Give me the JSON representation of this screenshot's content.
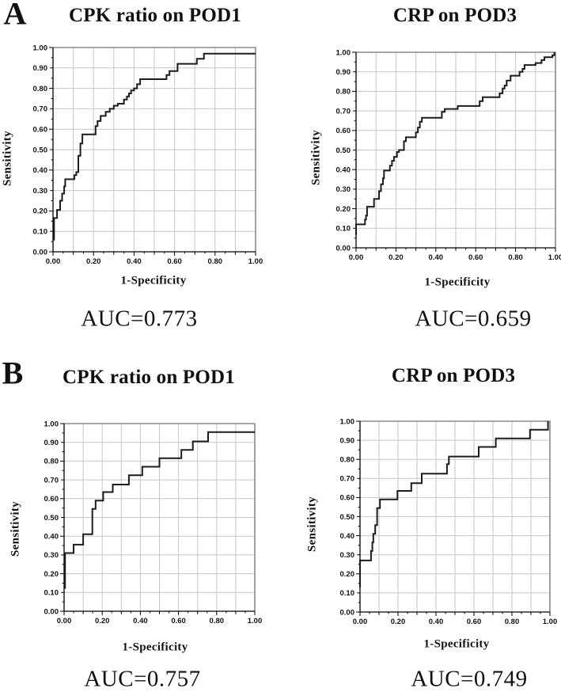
{
  "figure": {
    "panel_letters": [
      {
        "label": "A"
      },
      {
        "label": "B"
      }
    ],
    "axes": {
      "xlabel": "1-Specificity",
      "ylabel": "Sensitivity",
      "x_tick_labels": [
        "0.00",
        "0.20",
        "0.40",
        "0.60",
        "0.80",
        "1.00"
      ],
      "x_tick_values": [
        0,
        0.2,
        0.4,
        0.6,
        0.8,
        1
      ],
      "y_tick_labels": [
        "0.00",
        "0.10",
        "0.20",
        "0.30",
        "0.40",
        "0.50",
        "0.60",
        "0.70",
        "0.80",
        "0.90",
        "1.00"
      ],
      "y_tick_values": [
        0,
        0.1,
        0.2,
        0.3,
        0.4,
        0.5,
        0.6,
        0.7,
        0.8,
        0.9,
        1
      ],
      "x_range": [
        0,
        1
      ],
      "y_range": [
        0,
        1
      ],
      "grid": "on",
      "grid_step": 0.1,
      "minor_tick_step": 0.05
    },
    "colors": {
      "curve": "#1c1c1c",
      "grid": "#c6c6c6",
      "frame": "#8a8a8a",
      "axis": "#000000",
      "text": "#111111"
    }
  },
  "chart_data": [
    {
      "type": "line",
      "subtype": "roc-step-curve",
      "panel": "A",
      "title": "CPK ratio on POD1",
      "auc": 0.773,
      "auc_text": "AUC=0.773",
      "xlabel": "1-Specificity",
      "ylabel": "Sensitivity",
      "xlim": [
        0,
        1
      ],
      "ylim": [
        0,
        1
      ],
      "points": [
        [
          0.005,
          0.055
        ],
        [
          0.005,
          0.165
        ],
        [
          0.02,
          0.165
        ],
        [
          0.02,
          0.205
        ],
        [
          0.035,
          0.205
        ],
        [
          0.035,
          0.25
        ],
        [
          0.045,
          0.25
        ],
        [
          0.045,
          0.285
        ],
        [
          0.055,
          0.285
        ],
        [
          0.055,
          0.32
        ],
        [
          0.06,
          0.32
        ],
        [
          0.06,
          0.355
        ],
        [
          0.105,
          0.355
        ],
        [
          0.105,
          0.375
        ],
        [
          0.115,
          0.375
        ],
        [
          0.115,
          0.39
        ],
        [
          0.125,
          0.39
        ],
        [
          0.125,
          0.47
        ],
        [
          0.135,
          0.47
        ],
        [
          0.135,
          0.53
        ],
        [
          0.145,
          0.53
        ],
        [
          0.145,
          0.575
        ],
        [
          0.21,
          0.575
        ],
        [
          0.21,
          0.615
        ],
        [
          0.22,
          0.615
        ],
        [
          0.22,
          0.64
        ],
        [
          0.235,
          0.64
        ],
        [
          0.235,
          0.665
        ],
        [
          0.26,
          0.665
        ],
        [
          0.26,
          0.685
        ],
        [
          0.28,
          0.685
        ],
        [
          0.28,
          0.7
        ],
        [
          0.3,
          0.7
        ],
        [
          0.3,
          0.715
        ],
        [
          0.32,
          0.715
        ],
        [
          0.32,
          0.725
        ],
        [
          0.35,
          0.725
        ],
        [
          0.35,
          0.745
        ],
        [
          0.365,
          0.745
        ],
        [
          0.365,
          0.76
        ],
        [
          0.375,
          0.76
        ],
        [
          0.375,
          0.775
        ],
        [
          0.385,
          0.775
        ],
        [
          0.385,
          0.79
        ],
        [
          0.4,
          0.79
        ],
        [
          0.4,
          0.8
        ],
        [
          0.415,
          0.8
        ],
        [
          0.415,
          0.82
        ],
        [
          0.43,
          0.82
        ],
        [
          0.43,
          0.845
        ],
        [
          0.56,
          0.845
        ],
        [
          0.56,
          0.865
        ],
        [
          0.575,
          0.865
        ],
        [
          0.575,
          0.885
        ],
        [
          0.615,
          0.885
        ],
        [
          0.615,
          0.92
        ],
        [
          0.71,
          0.92
        ],
        [
          0.71,
          0.945
        ],
        [
          0.745,
          0.945
        ],
        [
          0.745,
          0.97
        ],
        [
          1,
          0.97
        ]
      ]
    },
    {
      "type": "line",
      "subtype": "roc-step-curve",
      "panel": "A",
      "title": "CRP on POD3",
      "auc": 0.659,
      "auc_text": "AUC=0.659",
      "xlabel": "1-Specificity",
      "ylabel": "Sensitivity",
      "xlim": [
        0,
        1
      ],
      "ylim": [
        0,
        1
      ],
      "points": [
        [
          0,
          0.065
        ],
        [
          0,
          0.12
        ],
        [
          0.045,
          0.12
        ],
        [
          0.045,
          0.145
        ],
        [
          0.05,
          0.145
        ],
        [
          0.05,
          0.165
        ],
        [
          0.055,
          0.165
        ],
        [
          0.055,
          0.21
        ],
        [
          0.09,
          0.21
        ],
        [
          0.09,
          0.25
        ],
        [
          0.115,
          0.25
        ],
        [
          0.115,
          0.29
        ],
        [
          0.125,
          0.29
        ],
        [
          0.125,
          0.325
        ],
        [
          0.135,
          0.325
        ],
        [
          0.135,
          0.355
        ],
        [
          0.14,
          0.355
        ],
        [
          0.14,
          0.395
        ],
        [
          0.17,
          0.395
        ],
        [
          0.17,
          0.42
        ],
        [
          0.18,
          0.42
        ],
        [
          0.18,
          0.445
        ],
        [
          0.19,
          0.445
        ],
        [
          0.19,
          0.465
        ],
        [
          0.205,
          0.465
        ],
        [
          0.205,
          0.49
        ],
        [
          0.215,
          0.49
        ],
        [
          0.215,
          0.5
        ],
        [
          0.24,
          0.5
        ],
        [
          0.24,
          0.545
        ],
        [
          0.25,
          0.545
        ],
        [
          0.25,
          0.565
        ],
        [
          0.3,
          0.565
        ],
        [
          0.3,
          0.59
        ],
        [
          0.31,
          0.59
        ],
        [
          0.31,
          0.615
        ],
        [
          0.32,
          0.615
        ],
        [
          0.32,
          0.645
        ],
        [
          0.33,
          0.645
        ],
        [
          0.33,
          0.665
        ],
        [
          0.43,
          0.665
        ],
        [
          0.43,
          0.695
        ],
        [
          0.445,
          0.695
        ],
        [
          0.445,
          0.71
        ],
        [
          0.51,
          0.71
        ],
        [
          0.51,
          0.725
        ],
        [
          0.62,
          0.725
        ],
        [
          0.62,
          0.75
        ],
        [
          0.635,
          0.75
        ],
        [
          0.635,
          0.77
        ],
        [
          0.72,
          0.77
        ],
        [
          0.72,
          0.79
        ],
        [
          0.735,
          0.79
        ],
        [
          0.735,
          0.815
        ],
        [
          0.745,
          0.815
        ],
        [
          0.745,
          0.83
        ],
        [
          0.755,
          0.83
        ],
        [
          0.755,
          0.855
        ],
        [
          0.775,
          0.855
        ],
        [
          0.775,
          0.88
        ],
        [
          0.82,
          0.88
        ],
        [
          0.82,
          0.9
        ],
        [
          0.835,
          0.9
        ],
        [
          0.835,
          0.915
        ],
        [
          0.845,
          0.915
        ],
        [
          0.845,
          0.935
        ],
        [
          0.9,
          0.935
        ],
        [
          0.9,
          0.945
        ],
        [
          0.93,
          0.945
        ],
        [
          0.93,
          0.96
        ],
        [
          0.945,
          0.96
        ],
        [
          0.945,
          0.975
        ],
        [
          0.985,
          0.975
        ],
        [
          0.985,
          0.985
        ],
        [
          0.995,
          0.985
        ],
        [
          0.995,
          1
        ]
      ]
    },
    {
      "type": "line",
      "subtype": "roc-step-curve",
      "panel": "B",
      "title": "CPK ratio on POD1",
      "auc": 0.757,
      "auc_text": "AUC=0.757",
      "xlabel": "1-Specificity",
      "ylabel": "Sensitivity",
      "xlim": [
        0,
        1
      ],
      "ylim": [
        0,
        1
      ],
      "points": [
        [
          0.005,
          0.12
        ],
        [
          0.005,
          0.31
        ],
        [
          0.05,
          0.31
        ],
        [
          0.05,
          0.355
        ],
        [
          0.1,
          0.355
        ],
        [
          0.1,
          0.41
        ],
        [
          0.148,
          0.41
        ],
        [
          0.148,
          0.545
        ],
        [
          0.165,
          0.545
        ],
        [
          0.165,
          0.59
        ],
        [
          0.205,
          0.59
        ],
        [
          0.205,
          0.635
        ],
        [
          0.255,
          0.635
        ],
        [
          0.255,
          0.675
        ],
        [
          0.34,
          0.675
        ],
        [
          0.34,
          0.725
        ],
        [
          0.41,
          0.725
        ],
        [
          0.41,
          0.77
        ],
        [
          0.5,
          0.77
        ],
        [
          0.5,
          0.815
        ],
        [
          0.615,
          0.815
        ],
        [
          0.615,
          0.86
        ],
        [
          0.675,
          0.86
        ],
        [
          0.675,
          0.905
        ],
        [
          0.755,
          0.905
        ],
        [
          0.755,
          0.955
        ],
        [
          1,
          0.955
        ]
      ]
    },
    {
      "type": "line",
      "subtype": "roc-step-curve",
      "panel": "B",
      "title": "CRP on POD3",
      "auc": 0.749,
      "auc_text": "AUC=0.749",
      "xlabel": "1-Specificity",
      "ylabel": "Sensitivity",
      "xlim": [
        0,
        1
      ],
      "ylim": [
        0,
        1
      ],
      "points": [
        [
          0,
          0.13
        ],
        [
          0,
          0.27
        ],
        [
          0.058,
          0.27
        ],
        [
          0.058,
          0.32
        ],
        [
          0.065,
          0.32
        ],
        [
          0.065,
          0.365
        ],
        [
          0.07,
          0.365
        ],
        [
          0.07,
          0.41
        ],
        [
          0.08,
          0.41
        ],
        [
          0.08,
          0.455
        ],
        [
          0.09,
          0.455
        ],
        [
          0.09,
          0.545
        ],
        [
          0.105,
          0.545
        ],
        [
          0.105,
          0.59
        ],
        [
          0.197,
          0.59
        ],
        [
          0.197,
          0.635
        ],
        [
          0.27,
          0.635
        ],
        [
          0.27,
          0.675
        ],
        [
          0.325,
          0.675
        ],
        [
          0.325,
          0.725
        ],
        [
          0.458,
          0.725
        ],
        [
          0.458,
          0.775
        ],
        [
          0.468,
          0.775
        ],
        [
          0.468,
          0.815
        ],
        [
          0.625,
          0.815
        ],
        [
          0.625,
          0.865
        ],
        [
          0.715,
          0.865
        ],
        [
          0.715,
          0.91
        ],
        [
          0.895,
          0.91
        ],
        [
          0.895,
          0.955
        ],
        [
          0.99,
          0.955
        ],
        [
          0.99,
          1
        ]
      ]
    }
  ]
}
